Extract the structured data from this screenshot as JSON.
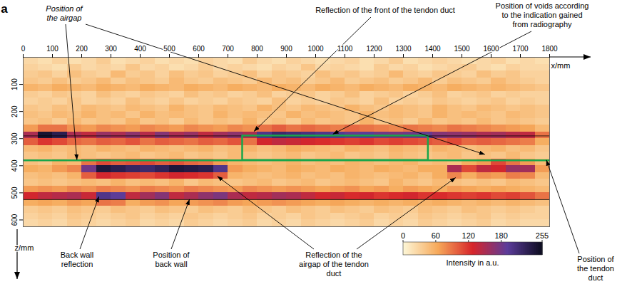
{
  "chart_data": {
    "type": "heatmap",
    "panel_label": "a",
    "x_label": "x/mm",
    "y_label": "z/mm",
    "xlim": [
      0,
      1800
    ],
    "xticks": [
      0,
      100,
      200,
      300,
      400,
      500,
      600,
      700,
      800,
      900,
      1000,
      1100,
      1200,
      1300,
      1400,
      1500,
      1600,
      1700,
      1800
    ],
    "ylim": [
      0,
      625
    ],
    "yticks": [
      100,
      200,
      300,
      400,
      500,
      600
    ],
    "x_edges": [
      0,
      50,
      100,
      150,
      200,
      250,
      300,
      350,
      400,
      450,
      500,
      550,
      600,
      650,
      700,
      750,
      800,
      850,
      900,
      950,
      1000,
      1050,
      1100,
      1150,
      1200,
      1250,
      1300,
      1350,
      1400,
      1450,
      1500,
      1550,
      1600,
      1650,
      1700,
      1750,
      1800
    ],
    "z_edges": [
      0,
      25,
      50,
      75,
      100,
      125,
      150,
      175,
      200,
      225,
      250,
      275,
      300,
      325,
      350,
      375,
      400,
      425,
      450,
      475,
      500,
      525,
      550,
      575,
      600,
      625
    ],
    "cells": [
      [
        25,
        20,
        30,
        20,
        25,
        35,
        20,
        25,
        30,
        20,
        25,
        20,
        30,
        25,
        20,
        35,
        25,
        20,
        30,
        25,
        20,
        25,
        30,
        20,
        25,
        35,
        20,
        25,
        30,
        25,
        20,
        25,
        30,
        20,
        25,
        20
      ],
      [
        30,
        25,
        20,
        35,
        25,
        30,
        25,
        40,
        25,
        30,
        20,
        25,
        35,
        25,
        30,
        25,
        20,
        30,
        25,
        40,
        25,
        30,
        25,
        20,
        35,
        25,
        30,
        20,
        25,
        30,
        35,
        25,
        20,
        30,
        25,
        25
      ],
      [
        35,
        40,
        30,
        45,
        35,
        30,
        50,
        35,
        40,
        30,
        45,
        35,
        40,
        30,
        35,
        45,
        30,
        40,
        35,
        30,
        45,
        35,
        40,
        30,
        35,
        50,
        35,
        30,
        40,
        35,
        30,
        45,
        35,
        40,
        30,
        30
      ],
      [
        40,
        35,
        45,
        35,
        40,
        50,
        35,
        45,
        40,
        35,
        50,
        40,
        35,
        45,
        40,
        35,
        50,
        40,
        45,
        35,
        40,
        50,
        35,
        40,
        45,
        35,
        40,
        50,
        35,
        45,
        40,
        35,
        50,
        40,
        35,
        30
      ],
      [
        55,
        50,
        60,
        55,
        50,
        60,
        55,
        50,
        60,
        55,
        50,
        60,
        55,
        50,
        60,
        55,
        50,
        60,
        55,
        50,
        60,
        55,
        50,
        60,
        55,
        50,
        60,
        55,
        50,
        60,
        55,
        50,
        55,
        50,
        45,
        40
      ],
      [
        35,
        30,
        40,
        35,
        30,
        45,
        35,
        30,
        40,
        35,
        30,
        45,
        35,
        40,
        30,
        35,
        45,
        30,
        35,
        40,
        30,
        35,
        45,
        30,
        35,
        40,
        30,
        35,
        45,
        30,
        35,
        40,
        30,
        35,
        30,
        30
      ],
      [
        30,
        35,
        30,
        40,
        30,
        35,
        30,
        45,
        35,
        30,
        40,
        30,
        35,
        30,
        40,
        35,
        30,
        45,
        30,
        35,
        30,
        40,
        35,
        30,
        45,
        30,
        35,
        30,
        40,
        35,
        30,
        35,
        40,
        30,
        35,
        30
      ],
      [
        40,
        35,
        45,
        40,
        50,
        45,
        40,
        50,
        45,
        40,
        55,
        45,
        40,
        50,
        45,
        40,
        55,
        45,
        40,
        50,
        45,
        40,
        55,
        45,
        40,
        50,
        45,
        40,
        55,
        45,
        40,
        50,
        45,
        40,
        45,
        40
      ],
      [
        45,
        40,
        50,
        45,
        55,
        45,
        50,
        40,
        55,
        45,
        50,
        45,
        40,
        55,
        45,
        50,
        45,
        40,
        55,
        45,
        50,
        45,
        40,
        55,
        45,
        50,
        45,
        40,
        55,
        45,
        50,
        45,
        40,
        50,
        45,
        40
      ],
      [
        40,
        45,
        35,
        50,
        40,
        45,
        40,
        55,
        40,
        45,
        35,
        50,
        40,
        45,
        40,
        55,
        40,
        45,
        35,
        50,
        40,
        45,
        40,
        55,
        40,
        45,
        35,
        50,
        40,
        45,
        40,
        50,
        40,
        45,
        40,
        35
      ],
      [
        70,
        90,
        90,
        75,
        70,
        80,
        75,
        70,
        80,
        75,
        70,
        80,
        75,
        70,
        80,
        75,
        90,
        100,
        90,
        95,
        90,
        85,
        95,
        90,
        85,
        80,
        90,
        85,
        80,
        90,
        85,
        80,
        75,
        70,
        65,
        50
      ],
      [
        150,
        245,
        230,
        150,
        140,
        160,
        150,
        165,
        145,
        170,
        150,
        160,
        140,
        155,
        165,
        150,
        200,
        215,
        210,
        205,
        200,
        195,
        185,
        190,
        180,
        175,
        180,
        185,
        170,
        165,
        160,
        150,
        155,
        145,
        140,
        90
      ],
      [
        100,
        120,
        110,
        95,
        90,
        100,
        95,
        105,
        90,
        100,
        95,
        90,
        100,
        95,
        105,
        90,
        130,
        140,
        135,
        130,
        125,
        120,
        115,
        120,
        110,
        115,
        110,
        105,
        100,
        110,
        95,
        100,
        95,
        90,
        85,
        60
      ],
      [
        50,
        55,
        45,
        50,
        45,
        55,
        50,
        45,
        55,
        50,
        45,
        50,
        55,
        45,
        50,
        55,
        45,
        50,
        60,
        55,
        50,
        45,
        55,
        50,
        45,
        55,
        50,
        45,
        55,
        50,
        45,
        50,
        55,
        45,
        50,
        40
      ],
      [
        40,
        45,
        40,
        50,
        45,
        40,
        45,
        50,
        40,
        45,
        50,
        40,
        45,
        40,
        50,
        45,
        40,
        45,
        50,
        40,
        45,
        50,
        40,
        45,
        40,
        50,
        45,
        40,
        45,
        50,
        40,
        45,
        40,
        50,
        40,
        35
      ],
      [
        45,
        40,
        55,
        50,
        90,
        110,
        100,
        105,
        110,
        100,
        105,
        95,
        90,
        70,
        55,
        50,
        45,
        50,
        55,
        45,
        50,
        45,
        55,
        50,
        45,
        50,
        55,
        45,
        50,
        45,
        60,
        70,
        110,
        90,
        70,
        50
      ],
      [
        60,
        55,
        70,
        80,
        180,
        240,
        230,
        220,
        215,
        225,
        240,
        235,
        230,
        200,
        70,
        60,
        55,
        50,
        60,
        55,
        50,
        60,
        55,
        50,
        60,
        55,
        50,
        60,
        60,
        150,
        110,
        140,
        130,
        160,
        155,
        70
      ],
      [
        45,
        50,
        45,
        55,
        100,
        130,
        120,
        115,
        110,
        120,
        130,
        125,
        120,
        100,
        55,
        50,
        45,
        50,
        55,
        45,
        50,
        45,
        55,
        50,
        45,
        50,
        55,
        45,
        60,
        80,
        60,
        75,
        70,
        85,
        80,
        50
      ],
      [
        40,
        45,
        40,
        45,
        50,
        45,
        55,
        45,
        50,
        45,
        55,
        40,
        50,
        45,
        40,
        45,
        50,
        40,
        45,
        50,
        40,
        45,
        50,
        45,
        40,
        55,
        45,
        40,
        50,
        45,
        40,
        45,
        40,
        50,
        45,
        40
      ],
      [
        70,
        75,
        70,
        80,
        75,
        85,
        80,
        75,
        85,
        80,
        75,
        85,
        80,
        75,
        70,
        80,
        75,
        70,
        75,
        70,
        65,
        70,
        75,
        65,
        70,
        60,
        70,
        65,
        60,
        70,
        65,
        60,
        65,
        60,
        55,
        50
      ],
      [
        130,
        140,
        145,
        150,
        135,
        200,
        190,
        140,
        155,
        170,
        140,
        150,
        165,
        175,
        150,
        140,
        145,
        155,
        150,
        140,
        130,
        135,
        125,
        130,
        120,
        125,
        130,
        120,
        125,
        120,
        115,
        120,
        110,
        115,
        105,
        90
      ],
      [
        60,
        65,
        60,
        70,
        65,
        90,
        85,
        60,
        70,
        75,
        65,
        70,
        75,
        80,
        70,
        65,
        70,
        75,
        70,
        65,
        60,
        65,
        60,
        55,
        60,
        55,
        60,
        55,
        60,
        55,
        50,
        55,
        50,
        55,
        50,
        45
      ],
      [
        35,
        40,
        35,
        45,
        40,
        35,
        45,
        40,
        35,
        45,
        40,
        35,
        45,
        40,
        35,
        45,
        40,
        35,
        45,
        40,
        35,
        45,
        40,
        35,
        45,
        40,
        35,
        45,
        40,
        35,
        45,
        40,
        35,
        40,
        35,
        30
      ],
      [
        30,
        35,
        30,
        40,
        35,
        30,
        35,
        40,
        30,
        35,
        30,
        40,
        35,
        30,
        35,
        40,
        30,
        35,
        30,
        40,
        35,
        30,
        35,
        40,
        30,
        35,
        30,
        40,
        35,
        30,
        35,
        40,
        30,
        35,
        30,
        30
      ],
      [
        25,
        30,
        25,
        35,
        30,
        25,
        30,
        35,
        25,
        30,
        25,
        35,
        30,
        25,
        30,
        35,
        25,
        30,
        25,
        35,
        30,
        25,
        30,
        35,
        25,
        30,
        25,
        35,
        30,
        25,
        30,
        35,
        25,
        30,
        25,
        25
      ]
    ],
    "colorbar": {
      "range": [
        0,
        255
      ],
      "ticks": [
        0,
        60,
        120,
        180,
        255
      ],
      "label": "Intensity in a.u.",
      "colors": [
        "#fdf7d8",
        "#f6a95a",
        "#d7252a",
        "#5b3c9a",
        "#0b0b1e"
      ]
    },
    "guide_lines": {
      "z": [
        290,
        525
      ],
      "color": "#000000"
    },
    "tendon_duct": {
      "z": 380,
      "color": "#19a64b"
    },
    "voids": {
      "x": [
        750,
        1385
      ],
      "z": [
        290,
        380
      ],
      "color": "#19a64b"
    },
    "annotations": [
      {
        "text": "Position of the airgap",
        "targets": [
          [
            185,
            380
          ],
          [
            1580,
            360
          ]
        ]
      },
      {
        "text": "Reflection of the front of the tendon duct",
        "targets": [
          [
            790,
            275
          ]
        ]
      },
      {
        "text": "Position of voids according to the indication gained from radiography",
        "targets": [
          [
            1060,
            285
          ]
        ]
      },
      {
        "text": "Back wall reflection",
        "targets": [
          [
            260,
            515
          ]
        ]
      },
      {
        "text": "Position of back wall",
        "targets": [
          [
            570,
            525
          ]
        ]
      },
      {
        "text": "Reflection of the airgap of the tendon duct",
        "targets": [
          [
            665,
            440
          ],
          [
            1480,
            445
          ]
        ]
      },
      {
        "text": "Position of the tendon duct",
        "targets": [
          [
            1790,
            380
          ]
        ]
      }
    ]
  }
}
